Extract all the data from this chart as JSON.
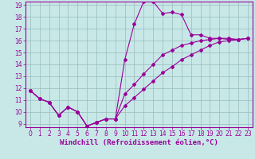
{
  "xlabel": "Windchill (Refroidissement éolien,°C)",
  "xlim": [
    0,
    23
  ],
  "ylim": [
    9,
    19
  ],
  "xticks": [
    0,
    1,
    2,
    3,
    4,
    5,
    6,
    7,
    8,
    9,
    10,
    11,
    12,
    13,
    14,
    15,
    16,
    17,
    18,
    19,
    20,
    21,
    22,
    23
  ],
  "yticks": [
    9,
    10,
    11,
    12,
    13,
    14,
    15,
    16,
    17,
    18,
    19
  ],
  "line_color": "#990099",
  "bg_color": "#c8e8e8",
  "grid_color": "#99bbbb",
  "line1_x": [
    0,
    1,
    2,
    3,
    4,
    5,
    6,
    7,
    8,
    9,
    10,
    11,
    12,
    13,
    14,
    15,
    16,
    17,
    18,
    19,
    20,
    21,
    22,
    23
  ],
  "line1_y": [
    11.8,
    11.1,
    10.8,
    9.7,
    10.4,
    10.0,
    8.8,
    9.1,
    9.4,
    9.4,
    14.4,
    17.4,
    19.3,
    19.3,
    18.3,
    18.4,
    18.2,
    16.5,
    16.5,
    16.2,
    16.2,
    16.2,
    16.1,
    16.2
  ],
  "line2_x": [
    0,
    1,
    2,
    3,
    4,
    5,
    6,
    7,
    8,
    9,
    10,
    11,
    12,
    13,
    14,
    15,
    16,
    17,
    18,
    19,
    20,
    21,
    22,
    23
  ],
  "line2_y": [
    11.8,
    11.1,
    10.8,
    9.7,
    10.4,
    10.0,
    8.8,
    9.1,
    9.4,
    9.4,
    11.5,
    12.3,
    13.2,
    14.0,
    14.8,
    15.2,
    15.6,
    15.8,
    16.0,
    16.1,
    16.2,
    16.1,
    16.1,
    16.2
  ],
  "line3_x": [
    0,
    1,
    2,
    3,
    4,
    5,
    6,
    7,
    8,
    9,
    10,
    11,
    12,
    13,
    14,
    15,
    16,
    17,
    18,
    19,
    20,
    21,
    22,
    23
  ],
  "line3_y": [
    11.8,
    11.1,
    10.8,
    9.7,
    10.4,
    10.0,
    8.8,
    9.1,
    9.4,
    9.4,
    10.5,
    11.2,
    11.9,
    12.6,
    13.3,
    13.8,
    14.4,
    14.8,
    15.2,
    15.6,
    15.9,
    16.0,
    16.1,
    16.2
  ],
  "marker": "D",
  "markersize": 2.0,
  "linewidth": 0.8,
  "tick_labelsize": 5.5,
  "xlabel_fontsize": 6.5
}
